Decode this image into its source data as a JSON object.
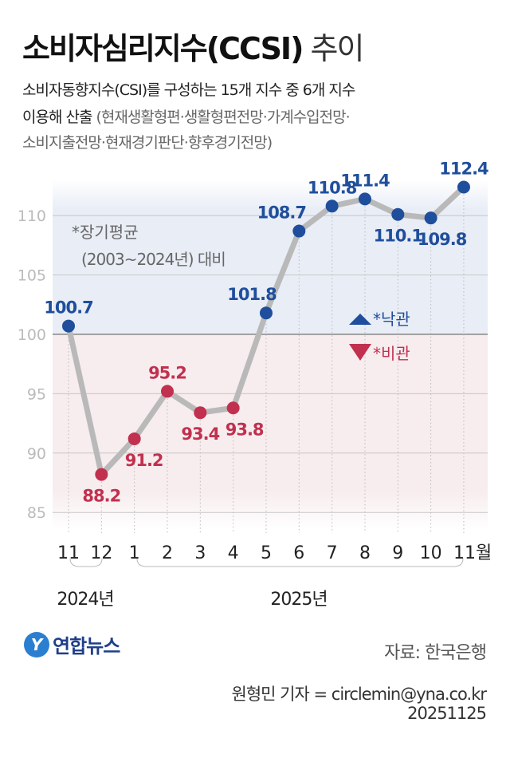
{
  "title": {
    "bold": "소비자심리지수(CCSI)",
    "rest": " 추이"
  },
  "subtitle": {
    "line1": "소비자동향지수(CSI)를 구성하는 15개 지수 중 6개 지수",
    "line2_main": "이용해 산출",
    "line2_gray": " (현재생활형편·생활형편전망·가계수입전망·",
    "line3_gray": "소비지출전망·현재경기판단·향후경기전망)"
  },
  "chart_data": {
    "type": "line",
    "categories": [
      "11",
      "12",
      "1",
      "2",
      "3",
      "4",
      "5",
      "6",
      "7",
      "8",
      "9",
      "10",
      "11월"
    ],
    "values": [
      100.7,
      88.2,
      91.2,
      95.2,
      93.4,
      93.8,
      101.8,
      108.7,
      110.8,
      111.4,
      110.1,
      109.8,
      112.4
    ],
    "value_labels": [
      "100.7",
      "88.2",
      "91.2",
      "95.2",
      "93.4",
      "93.8",
      "101.8",
      "108.7",
      "110.8",
      "111.4",
      "110.1",
      "109.8",
      "112.4"
    ],
    "yticks": [
      "110",
      "105",
      "100",
      "95",
      "90",
      "85"
    ],
    "ylim": [
      84,
      113
    ],
    "baseline": 100,
    "year_groups": [
      "2024년",
      "2025년"
    ],
    "annotation": {
      "line1": "*장기평균",
      "line2": "(2003~2024년) 대비"
    },
    "legend": {
      "optimism": "*낙관",
      "pessimism": "*비관"
    },
    "colors": {
      "above": "#1f4e9c",
      "below": "#c1304f",
      "line": "#b9b9b9",
      "above_bg": "#e8edf6",
      "below_bg": "#f7ecee"
    }
  },
  "footer": {
    "logo_text": "연합뉴스",
    "source": "자료: 한국은행",
    "reporter": "원형민 기자 = circlemin@yna.co.kr",
    "date": "20251125"
  }
}
